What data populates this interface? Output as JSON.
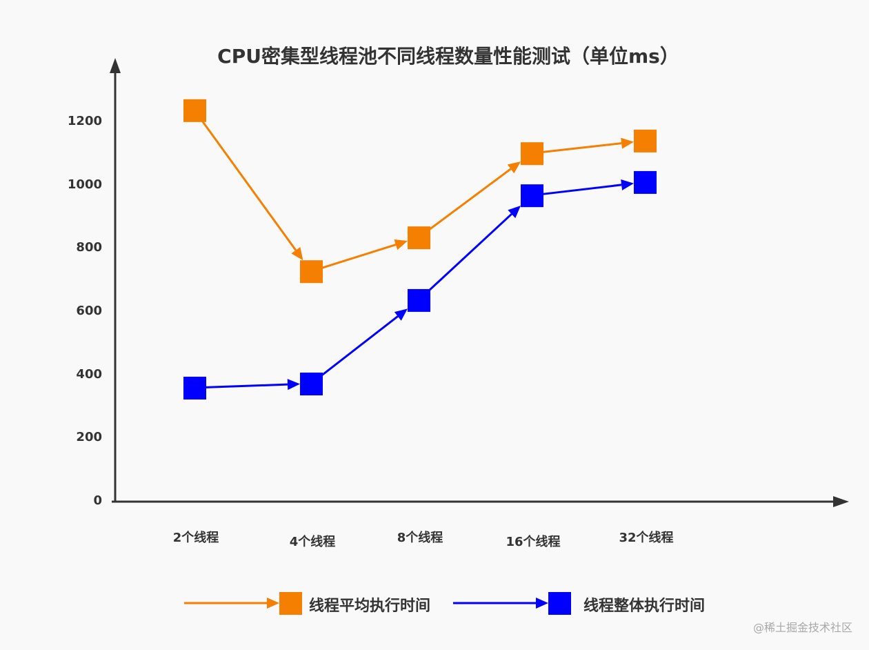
{
  "chart_data": {
    "type": "line",
    "title": "CPU密集型线程池不同线程数量性能测试（单位ms）",
    "xlabel": "",
    "ylabel": "",
    "categories": [
      "2个线程",
      "4个线程",
      "8个线程",
      "16个线程",
      "32个线程"
    ],
    "series": [
      {
        "name": "线程平均执行时间",
        "color": "#f57f00",
        "values": [
          1237,
          728,
          835,
          1101,
          1141
        ]
      },
      {
        "name": "线程整体执行时间",
        "color": "#0000ff",
        "values": [
          360,
          373,
          637,
          968,
          1010
        ]
      }
    ],
    "yticks": [
      "0",
      "200",
      "400",
      "600",
      "800",
      "1000",
      "1200"
    ],
    "ylim": [
      0,
      1300
    ],
    "grid": false,
    "legend_position": "bottom",
    "marker": "square"
  },
  "watermark": "@稀土掘金技术社区"
}
